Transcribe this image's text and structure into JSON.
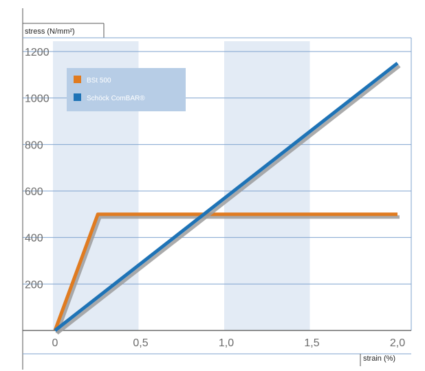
{
  "chart_data": {
    "type": "line",
    "title": "",
    "ylabel": "stress (N/mm²)",
    "xlabel": "strain (%)",
    "xlim": [
      0,
      2.0
    ],
    "ylim": [
      0,
      1200
    ],
    "x_ticks": [
      "0",
      "0,5",
      "1,0",
      "1,5",
      "2,0"
    ],
    "x_tick_values": [
      0,
      0.5,
      1.0,
      1.5,
      2.0
    ],
    "y_ticks": [
      "200",
      "400",
      "600",
      "800",
      "1000",
      "1200"
    ],
    "y_tick_values": [
      200,
      400,
      600,
      800,
      1000,
      1200
    ],
    "grid": "horizontal",
    "legend_position": "top-left",
    "shaded_bands_x": [
      [
        0,
        0.5
      ],
      [
        1.0,
        1.5
      ]
    ],
    "series": [
      {
        "name": "BSt 500",
        "color": "#e07b20",
        "points": [
          [
            0,
            0
          ],
          [
            0.25,
            500
          ],
          [
            2.0,
            500
          ]
        ]
      },
      {
        "name": "Schöck ComBAR®",
        "color": "#1e73b6",
        "points": [
          [
            0,
            0
          ],
          [
            2.0,
            1150
          ]
        ]
      }
    ],
    "colors": {
      "band": "#e3ebf5",
      "legend_bg": "#b7cde6",
      "grid": "#7fa3cf",
      "shadow": "#9c9c9c",
      "frame": "#555555"
    }
  }
}
